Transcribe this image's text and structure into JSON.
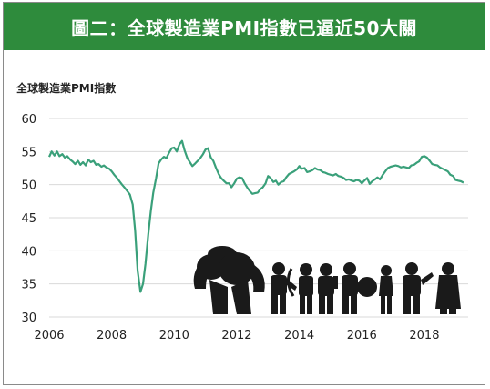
{
  "banner": {
    "title": "圖二：全球製造業PMI指數已逼近50大關"
  },
  "colors": {
    "banner_bg": "#2e8b3c",
    "line": "#3aa07a",
    "grid": "#d9d9d9",
    "silhouette": "#1a1a1a"
  },
  "chart_data": {
    "type": "line",
    "title": "圖二：全球製造業PMI指數已逼近50大關",
    "ylabel": "全球製造業PMI指數",
    "xlabel": "",
    "xlim": [
      2006,
      2019.4
    ],
    "ylim": [
      30,
      60
    ],
    "yticks": [
      30,
      35,
      40,
      45,
      50,
      55,
      60
    ],
    "xticks": [
      2006,
      2008,
      2010,
      2012,
      2014,
      2016,
      2018
    ],
    "grid": "horizontal",
    "series": [
      {
        "name": "",
        "x": [
          2006.0,
          2006.08,
          2006.17,
          2006.25,
          2006.33,
          2006.42,
          2006.5,
          2006.58,
          2006.67,
          2006.75,
          2006.83,
          2006.92,
          2007.0,
          2007.08,
          2007.17,
          2007.25,
          2007.33,
          2007.42,
          2007.5,
          2007.58,
          2007.67,
          2007.75,
          2007.83,
          2007.92,
          2008.0,
          2008.08,
          2008.17,
          2008.25,
          2008.33,
          2008.42,
          2008.5,
          2008.58,
          2008.67,
          2008.75,
          2008.83,
          2008.92,
          2009.0,
          2009.08,
          2009.17,
          2009.25,
          2009.33,
          2009.42,
          2009.5,
          2009.58,
          2009.67,
          2009.75,
          2009.83,
          2009.92,
          2010.0,
          2010.08,
          2010.17,
          2010.25,
          2010.33,
          2010.42,
          2010.5,
          2010.58,
          2010.67,
          2010.75,
          2010.83,
          2010.92,
          2011.0,
          2011.08,
          2011.17,
          2011.25,
          2011.33,
          2011.42,
          2011.5,
          2011.58,
          2011.67,
          2011.75,
          2011.83,
          2011.92,
          2012.0,
          2012.08,
          2012.17,
          2012.25,
          2012.33,
          2012.42,
          2012.5,
          2012.58,
          2012.67,
          2012.75,
          2012.83,
          2012.92,
          2013.0,
          2013.08,
          2013.17,
          2013.25,
          2013.33,
          2013.42,
          2013.5,
          2013.58,
          2013.67,
          2013.75,
          2013.83,
          2013.92,
          2014.0,
          2014.08,
          2014.17,
          2014.25,
          2014.33,
          2014.42,
          2014.5,
          2014.58,
          2014.67,
          2014.75,
          2014.83,
          2014.92,
          2015.0,
          2015.08,
          2015.17,
          2015.25,
          2015.33,
          2015.42,
          2015.5,
          2015.58,
          2015.67,
          2015.75,
          2015.83,
          2015.92,
          2016.0,
          2016.08,
          2016.17,
          2016.25,
          2016.33,
          2016.42,
          2016.5,
          2016.58,
          2016.67,
          2016.75,
          2016.83,
          2016.92,
          2017.0,
          2017.08,
          2017.17,
          2017.25,
          2017.33,
          2017.42,
          2017.5,
          2017.58,
          2017.67,
          2017.75,
          2017.83,
          2017.92,
          2018.0,
          2018.08,
          2018.17,
          2018.25,
          2018.33,
          2018.42,
          2018.5,
          2018.58,
          2018.67,
          2018.75,
          2018.83,
          2018.92,
          2019.0,
          2019.08,
          2019.17,
          2019.25
        ],
        "values": [
          54.2,
          55.0,
          54.4,
          55.0,
          54.3,
          54.6,
          54.1,
          54.3,
          53.8,
          53.5,
          53.1,
          53.6,
          53.0,
          53.4,
          52.9,
          53.8,
          53.4,
          53.6,
          53.0,
          53.1,
          52.7,
          52.9,
          52.6,
          52.4,
          52.0,
          51.5,
          51.0,
          50.5,
          50.0,
          49.5,
          49.0,
          48.5,
          47.0,
          43.0,
          37.0,
          33.8,
          35.0,
          38.0,
          42.5,
          46.0,
          48.8,
          51.0,
          53.2,
          53.8,
          54.2,
          54.0,
          54.8,
          55.5,
          55.6,
          55.0,
          56.1,
          56.6,
          55.2,
          54.0,
          53.4,
          52.8,
          53.2,
          53.6,
          54.0,
          54.6,
          55.3,
          55.5,
          54.1,
          53.6,
          52.6,
          51.6,
          51.0,
          50.6,
          50.2,
          50.2,
          49.6,
          50.2,
          50.9,
          51.1,
          51.0,
          50.2,
          49.6,
          49.0,
          48.6,
          48.7,
          48.8,
          49.3,
          49.6,
          50.2,
          51.3,
          51.0,
          50.4,
          50.6,
          50.0,
          50.4,
          50.5,
          51.1,
          51.6,
          51.8,
          52.0,
          52.3,
          52.8,
          52.4,
          52.5,
          51.9,
          52.0,
          52.2,
          52.5,
          52.3,
          52.2,
          51.9,
          51.8,
          51.6,
          51.5,
          51.4,
          51.6,
          51.3,
          51.2,
          51.0,
          50.7,
          50.8,
          50.6,
          50.5,
          50.7,
          50.6,
          50.2,
          50.6,
          51.0,
          50.1,
          50.5,
          50.8,
          51.1,
          50.8,
          51.5,
          52.0,
          52.5,
          52.7,
          52.8,
          52.9,
          52.8,
          52.6,
          52.7,
          52.6,
          52.5,
          52.9,
          53.0,
          53.3,
          53.5,
          54.2,
          54.3,
          54.1,
          53.6,
          53.1,
          53.0,
          52.9,
          52.6,
          52.4,
          52.2,
          52.0,
          51.5,
          51.3,
          50.7,
          50.6,
          50.5,
          50.3
        ]
      }
    ]
  }
}
